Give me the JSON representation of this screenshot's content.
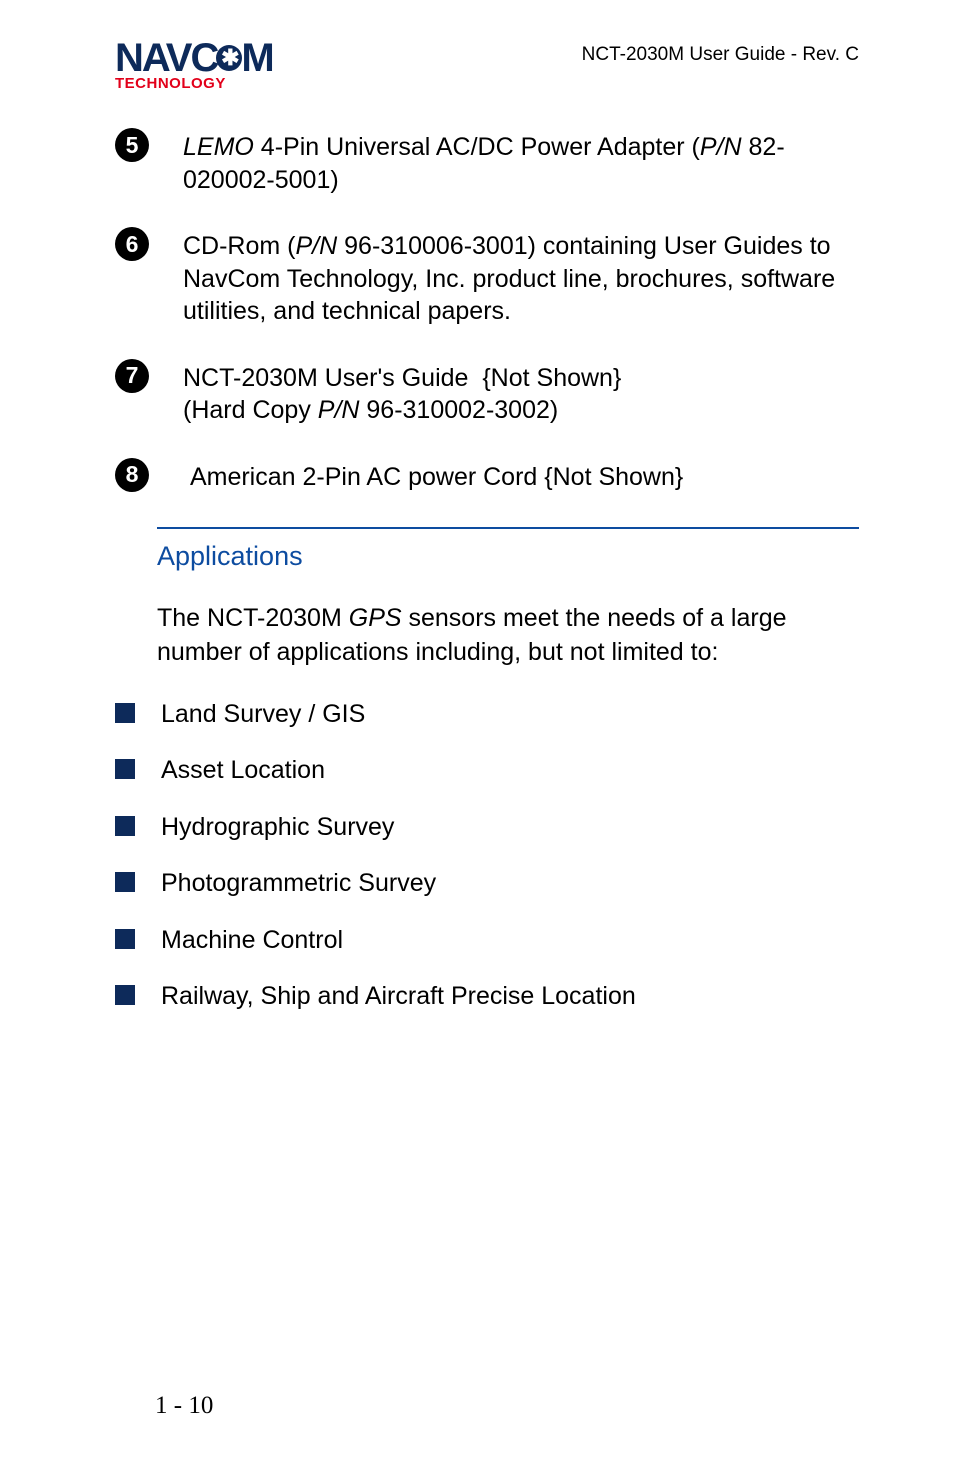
{
  "header": {
    "logo_main_pre": "NAVC",
    "logo_main_glyph": "✱",
    "logo_main_post": "M",
    "logo_sub": "TECHNOLOGY",
    "doc_title": "NCT-2030M User Guide - Rev. C"
  },
  "numbered_items": [
    {
      "num": "5",
      "html": "<em>LEMO</em> 4-Pin Universal AC/DC Power Adapter (<em>P/N</em> 82-020002-5001)"
    },
    {
      "num": "6",
      "html": "CD-Rom (<em>P/N</em> 96-310006-3001) containing User Guides to NavCom Technology, Inc. product line, brochures, software utilities, and technical papers."
    },
    {
      "num": "7",
      "html": "NCT-2030M User's Guide&nbsp;&nbsp;{Not Shown}<br>(Hard Copy <em>P/N</em> 96-310002-3002)"
    },
    {
      "num": "8",
      "html": "&nbsp;American 2-Pin AC power Cord {Not Shown}"
    }
  ],
  "section": {
    "title": "Applications",
    "intro_html": "The NCT-2030M <em>GPS</em> sensors meet the needs of a large number of applications including, but not limited to:"
  },
  "bullets": [
    "Land Survey / GIS",
    "Asset Location",
    "Hydrographic Survey",
    "Photogrammetric Survey",
    "Machine Control",
    "Railway, Ship and Aircraft Precise Location"
  ],
  "page_number": "1 - 10",
  "colors": {
    "blue": "#0d4ca0",
    "navy": "#0d2a5a",
    "red": "#e2001a",
    "text": "#000000",
    "bg": "#ffffff"
  },
  "typography": {
    "body_fontsize_pt": 19,
    "title_fontsize_pt": 20
  }
}
